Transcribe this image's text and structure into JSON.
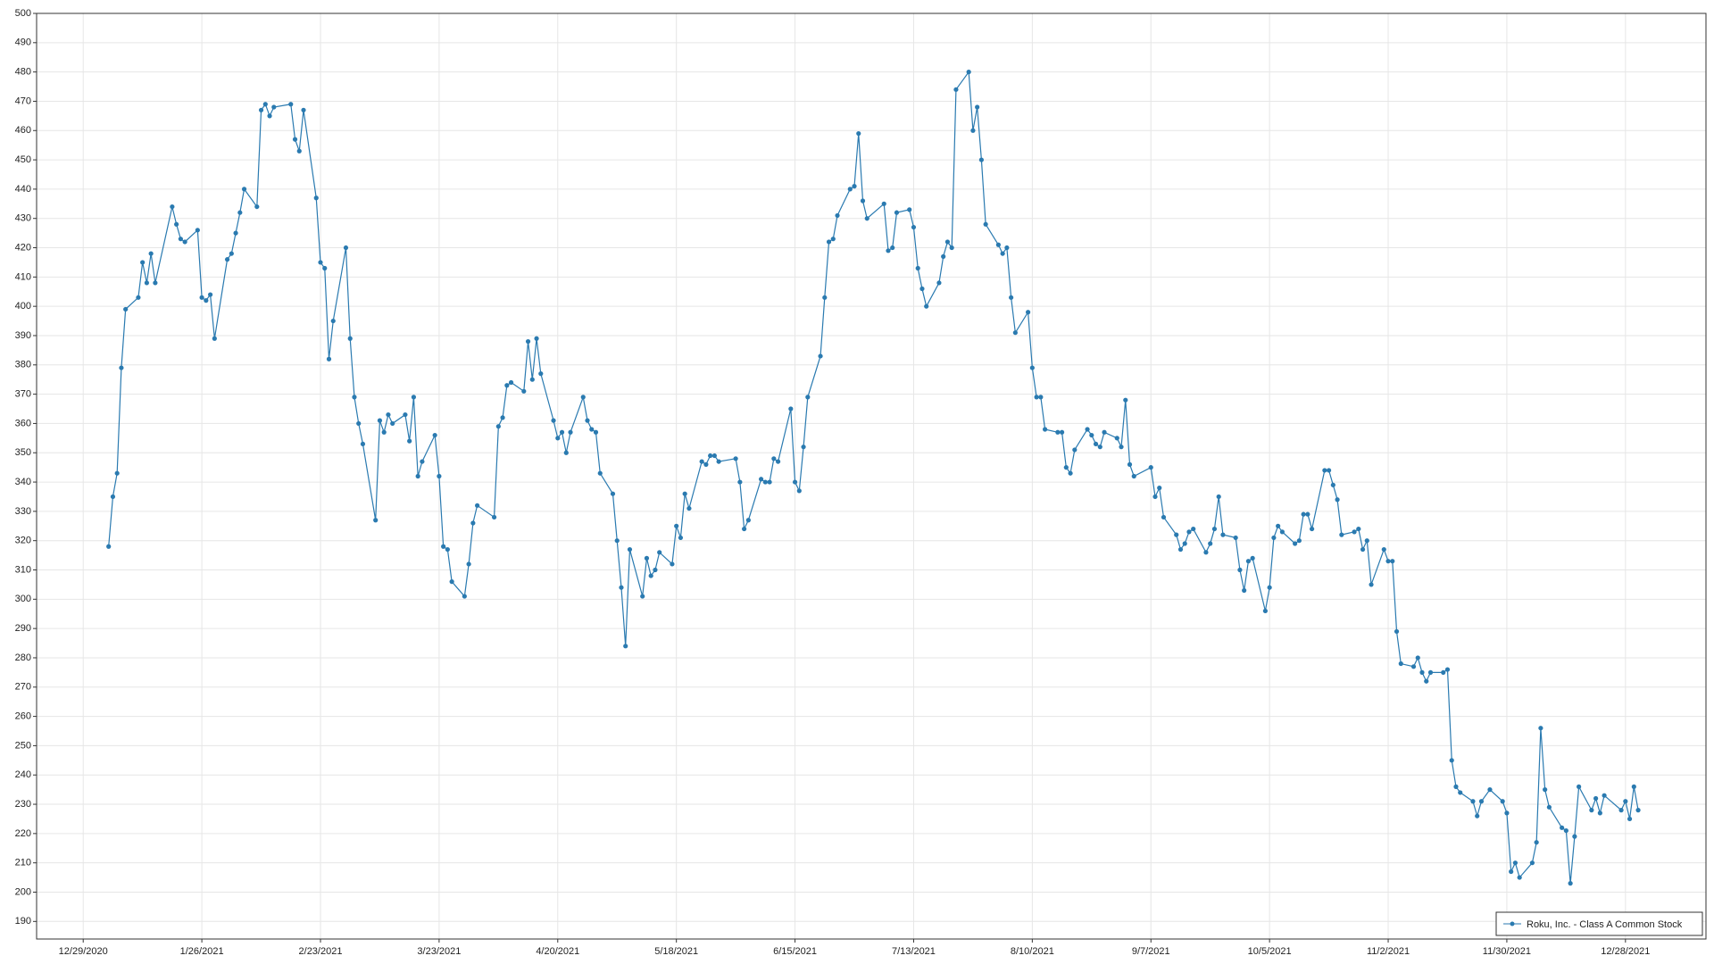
{
  "chart_data": {
    "type": "line",
    "color": "#2a7ab0",
    "grid": true,
    "legend": "bottom-right",
    "xlim": [
      "12/18/2020",
      "1/16/2022"
    ],
    "xticks": [
      "12/29/2020",
      "1/26/2021",
      "2/23/2021",
      "3/23/2021",
      "4/20/2021",
      "5/18/2021",
      "6/15/2021",
      "7/13/2021",
      "8/10/2021",
      "9/7/2021",
      "10/5/2021",
      "11/2/2021",
      "11/30/2021",
      "12/28/2021"
    ],
    "ylim": [
      184,
      500
    ],
    "yticks": [
      190,
      200,
      210,
      220,
      230,
      240,
      250,
      260,
      270,
      280,
      290,
      300,
      310,
      320,
      330,
      340,
      350,
      360,
      370,
      380,
      390,
      400,
      410,
      420,
      430,
      440,
      450,
      460,
      470,
      480,
      490,
      500
    ],
    "x": [
      "1/4/2021",
      "1/5/2021",
      "1/6/2021",
      "1/7/2021",
      "1/8/2021",
      "1/11/2021",
      "1/12/2021",
      "1/13/2021",
      "1/14/2021",
      "1/15/2021",
      "1/19/2021",
      "1/20/2021",
      "1/21/2021",
      "1/22/2021",
      "1/25/2021",
      "1/26/2021",
      "1/27/2021",
      "1/28/2021",
      "1/29/2021",
      "2/1/2021",
      "2/2/2021",
      "2/3/2021",
      "2/4/2021",
      "2/5/2021",
      "2/8/2021",
      "2/9/2021",
      "2/10/2021",
      "2/11/2021",
      "2/12/2021",
      "2/16/2021",
      "2/17/2021",
      "2/18/2021",
      "2/19/2021",
      "2/22/2021",
      "2/23/2021",
      "2/24/2021",
      "2/25/2021",
      "2/26/2021",
      "3/1/2021",
      "3/2/2021",
      "3/3/2021",
      "3/4/2021",
      "3/5/2021",
      "3/8/2021",
      "3/9/2021",
      "3/10/2021",
      "3/11/2021",
      "3/12/2021",
      "3/15/2021",
      "3/16/2021",
      "3/17/2021",
      "3/18/2021",
      "3/19/2021",
      "3/22/2021",
      "3/23/2021",
      "3/24/2021",
      "3/25/2021",
      "3/26/2021",
      "3/29/2021",
      "3/30/2021",
      "3/31/2021",
      "4/1/2021",
      "4/5/2021",
      "4/6/2021",
      "4/7/2021",
      "4/8/2021",
      "4/9/2021",
      "4/12/2021",
      "4/13/2021",
      "4/14/2021",
      "4/15/2021",
      "4/16/2021",
      "4/19/2021",
      "4/20/2021",
      "4/21/2021",
      "4/22/2021",
      "4/23/2021",
      "4/26/2021",
      "4/27/2021",
      "4/28/2021",
      "4/29/2021",
      "4/30/2021",
      "5/3/2021",
      "5/4/2021",
      "5/5/2021",
      "5/6/2021",
      "5/7/2021",
      "5/10/2021",
      "5/11/2021",
      "5/12/2021",
      "5/13/2021",
      "5/14/2021",
      "5/17/2021",
      "5/18/2021",
      "5/19/2021",
      "5/20/2021",
      "5/21/2021",
      "5/24/2021",
      "5/25/2021",
      "5/26/2021",
      "5/27/2021",
      "5/28/2021",
      "6/1/2021",
      "6/2/2021",
      "6/3/2021",
      "6/4/2021",
      "6/7/2021",
      "6/8/2021",
      "6/9/2021",
      "6/10/2021",
      "6/11/2021",
      "6/14/2021",
      "6/15/2021",
      "6/16/2021",
      "6/17/2021",
      "6/18/2021",
      "6/21/2021",
      "6/22/2021",
      "6/23/2021",
      "6/24/2021",
      "6/25/2021",
      "6/28/2021",
      "6/29/2021",
      "6/30/2021",
      "7/1/2021",
      "7/2/2021",
      "7/6/2021",
      "7/7/2021",
      "7/8/2021",
      "7/9/2021",
      "7/12/2021",
      "7/13/2021",
      "7/14/2021",
      "7/15/2021",
      "7/16/2021",
      "7/19/2021",
      "7/20/2021",
      "7/21/2021",
      "7/22/2021",
      "7/23/2021",
      "7/26/2021",
      "7/27/2021",
      "7/28/2021",
      "7/29/2021",
      "7/30/2021",
      "8/2/2021",
      "8/3/2021",
      "8/4/2021",
      "8/5/2021",
      "8/6/2021",
      "8/9/2021",
      "8/10/2021",
      "8/11/2021",
      "8/12/2021",
      "8/13/2021",
      "8/16/2021",
      "8/17/2021",
      "8/18/2021",
      "8/19/2021",
      "8/20/2021",
      "8/23/2021",
      "8/24/2021",
      "8/25/2021",
      "8/26/2021",
      "8/27/2021",
      "8/30/2021",
      "8/31/2021",
      "9/1/2021",
      "9/2/2021",
      "9/3/2021",
      "9/7/2021",
      "9/8/2021",
      "9/9/2021",
      "9/10/2021",
      "9/13/2021",
      "9/14/2021",
      "9/15/2021",
      "9/16/2021",
      "9/17/2021",
      "9/20/2021",
      "9/21/2021",
      "9/22/2021",
      "9/23/2021",
      "9/24/2021",
      "9/27/2021",
      "9/28/2021",
      "9/29/2021",
      "9/30/2021",
      "10/1/2021",
      "10/4/2021",
      "10/5/2021",
      "10/6/2021",
      "10/7/2021",
      "10/8/2021",
      "10/11/2021",
      "10/12/2021",
      "10/13/2021",
      "10/14/2021",
      "10/15/2021",
      "10/18/2021",
      "10/19/2021",
      "10/20/2021",
      "10/21/2021",
      "10/22/2021",
      "10/25/2021",
      "10/26/2021",
      "10/27/2021",
      "10/28/2021",
      "10/29/2021",
      "11/1/2021",
      "11/2/2021",
      "11/3/2021",
      "11/4/2021",
      "11/5/2021",
      "11/8/2021",
      "11/9/2021",
      "11/10/2021",
      "11/11/2021",
      "11/12/2021",
      "11/15/2021",
      "11/16/2021",
      "11/17/2021",
      "11/18/2021",
      "11/19/2021",
      "11/22/2021",
      "11/23/2021",
      "11/24/2021",
      "11/26/2021",
      "11/29/2021",
      "11/30/2021",
      "12/1/2021",
      "12/2/2021",
      "12/3/2021",
      "12/6/2021",
      "12/7/2021",
      "12/8/2021",
      "12/9/2021",
      "12/10/2021",
      "12/13/2021",
      "12/14/2021",
      "12/15/2021",
      "12/16/2021",
      "12/17/2021",
      "12/20/2021",
      "12/21/2021",
      "12/22/2021",
      "12/23/2021",
      "12/27/2021",
      "12/28/2021",
      "12/29/2021",
      "12/30/2021",
      "12/31/2021"
    ],
    "series": [
      {
        "name": "Roku, Inc. - Class A Common Stock",
        "color": "#2a7ab0",
        "values": [
          318,
          335,
          343,
          379,
          399,
          403,
          415,
          408,
          418,
          408,
          434,
          428,
          423,
          422,
          426,
          403,
          402,
          404,
          389,
          416,
          418,
          425,
          432,
          440,
          434,
          467,
          469,
          465,
          468,
          469,
          457,
          453,
          467,
          437,
          415,
          413,
          382,
          395,
          420,
          389,
          369,
          360,
          353,
          327,
          361,
          357,
          363,
          360,
          363,
          354,
          369,
          342,
          347,
          356,
          342,
          318,
          317,
          306,
          301,
          312,
          326,
          332,
          328,
          359,
          362,
          373,
          374,
          371,
          388,
          375,
          389,
          377,
          361,
          355,
          357,
          350,
          357,
          369,
          361,
          358,
          357,
          343,
          336,
          320,
          304,
          284,
          317,
          301,
          314,
          308,
          310,
          316,
          312,
          325,
          321,
          336,
          331,
          347,
          346,
          349,
          349,
          347,
          348,
          340,
          324,
          327,
          341,
          340,
          340,
          348,
          347,
          365,
          340,
          337,
          352,
          369,
          383,
          403,
          422,
          423,
          431,
          440,
          441,
          459,
          436,
          430,
          435,
          419,
          420,
          432,
          433,
          427,
          413,
          406,
          400,
          408,
          417,
          422,
          420,
          474,
          480,
          460,
          468,
          450,
          428,
          421,
          418,
          420,
          403,
          391,
          398,
          379,
          369,
          369,
          358,
          357,
          357,
          345,
          343,
          351,
          358,
          356,
          353,
          352,
          357,
          355,
          352,
          368,
          346,
          342,
          345,
          335,
          338,
          328,
          322,
          317,
          319,
          323,
          324,
          316,
          319,
          324,
          335,
          322,
          321,
          310,
          303,
          313,
          314,
          296,
          304,
          321,
          325,
          323,
          319,
          320,
          329,
          329,
          324,
          344,
          344,
          339,
          334,
          322,
          323,
          324,
          317,
          320,
          305,
          317,
          313,
          313,
          289,
          278,
          277,
          280,
          275,
          272,
          275,
          275,
          276,
          245,
          236,
          234,
          231,
          226,
          231,
          235,
          231,
          227,
          207,
          210,
          205,
          210,
          217,
          256,
          235,
          229,
          222,
          221,
          203,
          219,
          236,
          228,
          232,
          227,
          233,
          228,
          231,
          225,
          236,
          228
        ]
      }
    ]
  }
}
